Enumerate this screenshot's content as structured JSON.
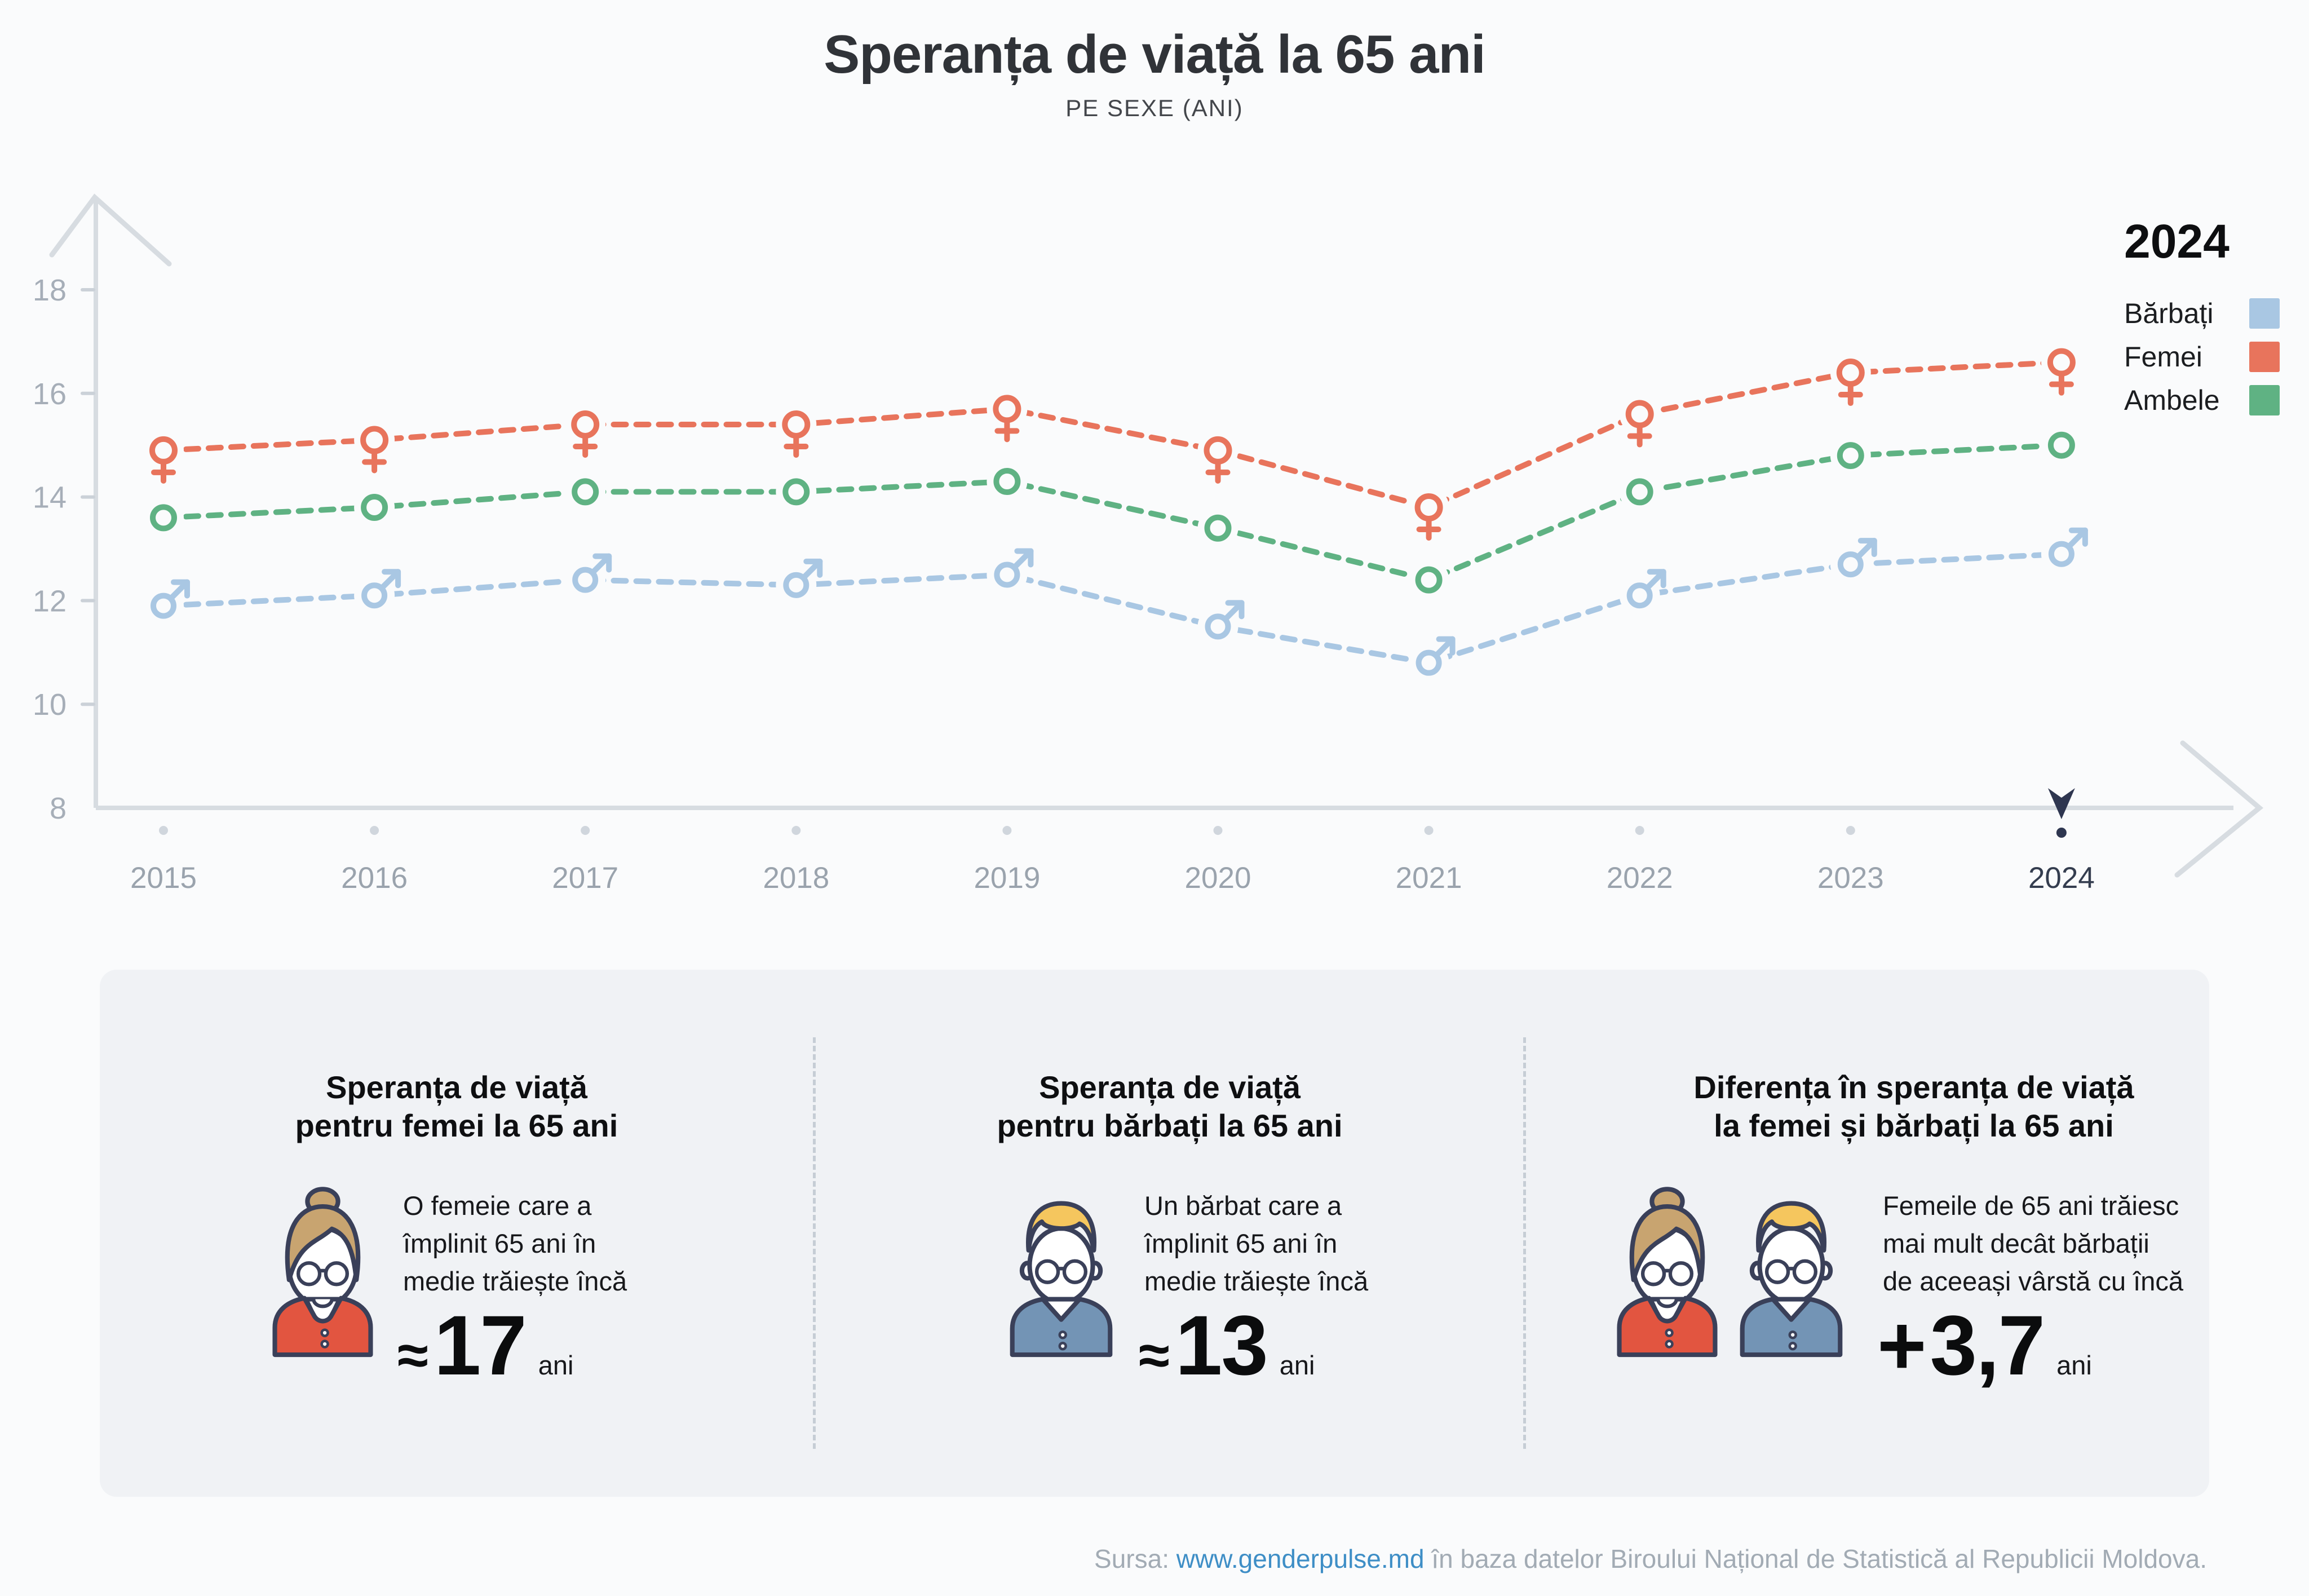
{
  "header": {
    "title": "Speranța de viață la 65 ani",
    "subtitle": "PE SEXE (ANI)"
  },
  "legend": {
    "year": "2024",
    "items": [
      {
        "label": "Bărbați",
        "color": "#a9c7e3"
      },
      {
        "label": "Femei",
        "color": "#e8745c"
      },
      {
        "label": "Ambele",
        "color": "#5fb283"
      }
    ]
  },
  "chart_data": {
    "type": "line",
    "title": "Speranța de viață la 65 ani",
    "subtitle": "PE SEXE (ANI)",
    "x": [
      2015,
      2016,
      2017,
      2018,
      2019,
      2020,
      2021,
      2022,
      2023,
      2024
    ],
    "series": [
      {
        "name": "Bărbați",
        "color": "#a9c7e3",
        "marker": "male",
        "values": [
          11.9,
          12.1,
          12.4,
          12.3,
          12.5,
          11.5,
          10.8,
          12.1,
          12.7,
          12.9
        ]
      },
      {
        "name": "Femei",
        "color": "#e8745c",
        "marker": "female",
        "values": [
          14.9,
          15.1,
          15.4,
          15.4,
          15.7,
          14.9,
          13.8,
          15.6,
          16.4,
          16.6
        ]
      },
      {
        "name": "Ambele",
        "color": "#5fb283",
        "marker": "circle",
        "values": [
          13.6,
          13.8,
          14.1,
          14.1,
          14.3,
          13.4,
          12.4,
          14.1,
          14.8,
          15.0
        ]
      }
    ],
    "ylim": [
      8,
      18
    ],
    "yticks": [
      8,
      10,
      12,
      14,
      16,
      18
    ],
    "grid": false,
    "legend_position": "top-right",
    "line_style": "dashed",
    "highlight_year": 2024
  },
  "cards": [
    {
      "title_lines": [
        "Speranța de viață",
        "pentru femei la 65 ani"
      ],
      "body_lines": [
        "O femeie care a",
        "împlinit 65 ani în",
        "medie trăiește încă"
      ],
      "prefix": "≈",
      "value": "17",
      "unit": "ani"
    },
    {
      "title_lines": [
        "Speranța de viață",
        "pentru bărbați la 65 ani"
      ],
      "body_lines": [
        "Un bărbat care a",
        "împlinit 65 ani în",
        "medie trăiește încă"
      ],
      "prefix": "≈",
      "value": "13",
      "unit": "ani"
    },
    {
      "title_lines": [
        "Diferența în speranța de viață",
        "la femei și bărbați la 65 ani"
      ],
      "body_lines": [
        "Femeile de 65 ani trăiesc",
        "mai mult decât bărbații",
        "de aceeași vârstă cu încă"
      ],
      "prefix": "+",
      "value": "3,7",
      "unit": "ani"
    }
  ],
  "footer": {
    "prefix": "Sursa: ",
    "link": "www.genderpulse.md",
    "suffix": " în baza datelor Biroului Național de Statistică al Republicii Moldova."
  },
  "colors": {
    "background": "#fafbfc",
    "card_background": "#f0f2f5",
    "axis": "#d7dce1",
    "tick": "#cbd1d8",
    "axis_label": "#a6aeb8",
    "year_label": "#9aa3ad",
    "year_label_active": "#343d4f",
    "pointer": "#2e3650",
    "male": "#a9c7e3",
    "female": "#e8745c",
    "both": "#5fb283",
    "link": "#3e8ec6",
    "icon_outline": "#3a4059",
    "woman_hair": "#c8a470",
    "man_hair": "#f5c65e",
    "woman_cardigan": "#e25540",
    "man_jacket": "#7394b5"
  }
}
